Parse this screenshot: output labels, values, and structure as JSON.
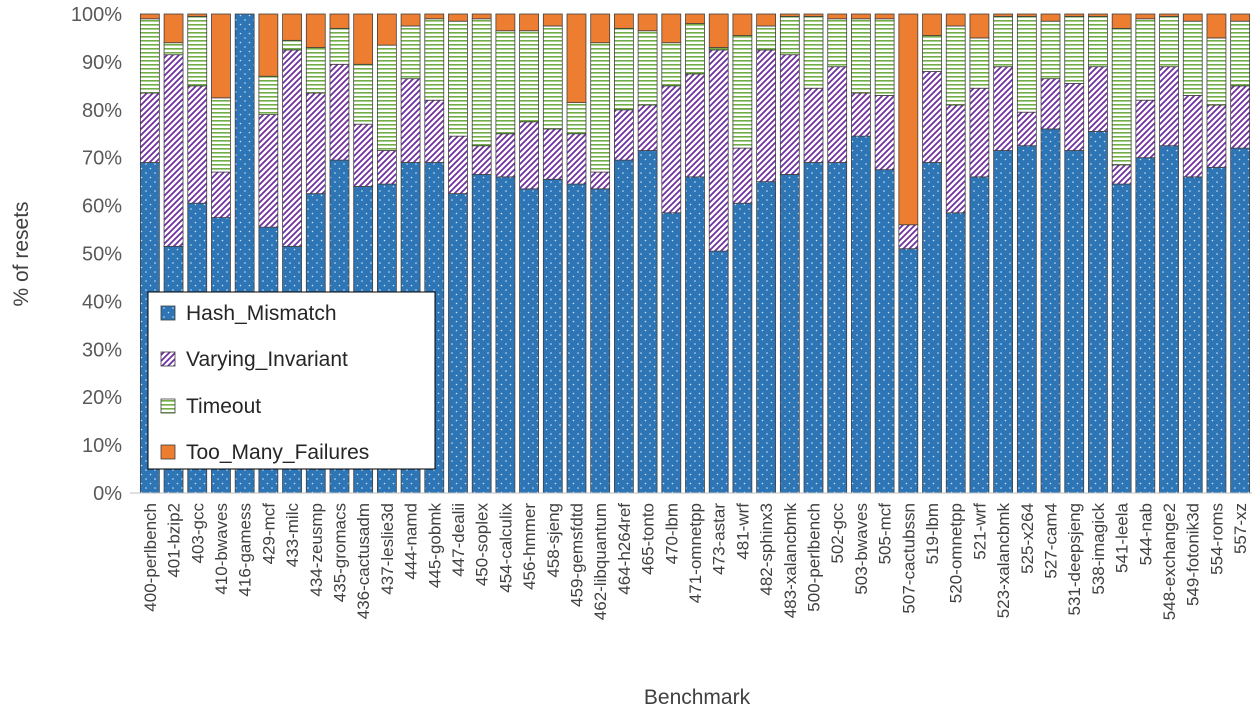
{
  "chart_data": {
    "type": "bar",
    "stacked": true,
    "title": "",
    "xlabel": "Benchmark",
    "ylabel": "% of resets",
    "ylim": [
      0,
      100
    ],
    "yticks": [
      "0%",
      "10%",
      "20%",
      "30%",
      "40%",
      "50%",
      "60%",
      "70%",
      "80%",
      "90%",
      "100%"
    ],
    "legend_position": "bottom-left",
    "categories": [
      "400-perlbench",
      "401-bzip2",
      "403-gcc",
      "410-bwaves",
      "416-gamess",
      "429-mcf",
      "433-milc",
      "434-zeusmp",
      "435-gromacs",
      "436-cactusadm",
      "437-leslie3d",
      "444-namd",
      "445-gobmk",
      "447-dealii",
      "450-soplex",
      "454-calculix",
      "456-hmmer",
      "458-sjeng",
      "459-gemsfdtd",
      "462-libquantum",
      "464-h264ref",
      "465-tonto",
      "470-lbm",
      "471-omnetpp",
      "473-astar",
      "481-wrf",
      "482-sphinx3",
      "483-xalancbmk",
      "500-perlbench",
      "502-gcc",
      "503-bwaves",
      "505-mcf",
      "507-cactubssn",
      "519-lbm",
      "520-omnetpp",
      "521-wrf",
      "523-xalancbmk",
      "525-x264",
      "527-cam4",
      "531-deepsjeng",
      "538-imagick",
      "541-leela",
      "544-nab",
      "548-exchange2",
      "549-fotonik3d",
      "554-roms",
      "557-xz"
    ],
    "series": [
      {
        "name": "Hash_Mismatch",
        "color": "#2E75B6",
        "values": [
          69,
          51.5,
          60.5,
          57.5,
          100,
          55.5,
          51.5,
          62.5,
          69.5,
          64,
          64.5,
          69,
          69,
          62.5,
          66.5,
          66,
          63.5,
          65.5,
          64.5,
          63.5,
          69.5,
          71.5,
          58.5,
          66,
          50.5,
          60.5,
          65,
          66.5,
          69,
          69,
          74.5,
          67.5,
          51,
          69,
          58.5,
          66,
          71.5,
          72.5,
          76,
          71.5,
          75.5,
          64.5,
          70,
          72.5,
          66,
          68,
          72
        ]
      },
      {
        "name": "Varying_Invariant",
        "color": "#7030A0",
        "values": [
          14.5,
          40,
          24.5,
          9.5,
          0,
          23.5,
          41,
          21,
          20,
          13,
          7,
          17.5,
          13,
          12,
          6,
          9,
          14,
          10.5,
          10.5,
          3.5,
          10.5,
          9.5,
          26.5,
          21.5,
          42,
          11.5,
          27.5,
          25,
          15.5,
          20,
          9,
          15.5,
          5,
          19,
          22.5,
          18.5,
          17.5,
          7,
          10.5,
          14,
          13.5,
          4,
          12,
          16.5,
          17,
          13,
          13
        ]
      },
      {
        "name": "Timeout",
        "color": "#70AD47",
        "values": [
          15.5,
          2.5,
          14.5,
          15.5,
          0,
          8,
          2,
          9.5,
          7.5,
          12.5,
          22,
          11,
          17,
          24,
          26.5,
          21.5,
          19,
          21.5,
          6.5,
          27,
          17,
          15.5,
          9,
          10.5,
          0.5,
          23.5,
          5,
          8,
          15,
          10,
          15.5,
          16,
          0,
          7.5,
          16.5,
          10.5,
          10.5,
          20,
          12,
          14,
          10.5,
          28.5,
          17,
          10.5,
          15.5,
          14,
          13.5
        ]
      },
      {
        "name": "Too_Many_Failures",
        "color": "#ED7D31",
        "values": [
          1,
          6,
          0.5,
          17.5,
          0,
          13,
          5.5,
          7,
          3,
          10.5,
          6.5,
          2.5,
          1,
          1.5,
          1,
          3.5,
          3.5,
          2.5,
          18.5,
          6,
          3,
          3.5,
          6,
          2,
          7,
          4.5,
          2.5,
          0.5,
          0.5,
          1,
          1,
          1,
          44,
          4.5,
          2.5,
          5,
          0.5,
          0.5,
          1.5,
          0.5,
          0.5,
          3,
          1,
          0.5,
          1.5,
          5,
          1.5
        ]
      }
    ]
  }
}
